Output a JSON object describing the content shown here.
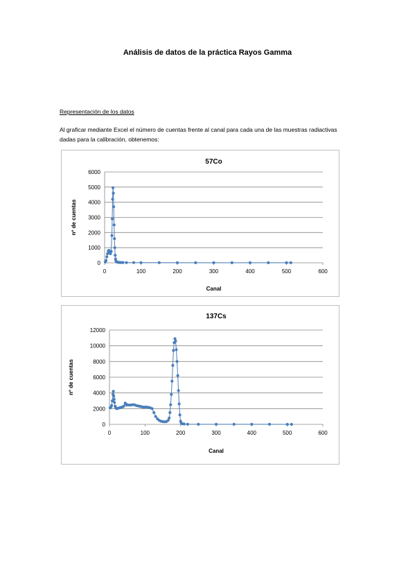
{
  "document": {
    "title": "Análisis de datos de la práctica Rayos Gamma",
    "section_heading": "Representación de los datos",
    "paragraph": "Al graficar mediante Excel el número de cuentas frente al canal para cada una de las muestras radiactivas dadas para la calibración, obtenemos:"
  },
  "chart_data": [
    {
      "type": "scatter",
      "title": "57Co",
      "xlabel": "Canal",
      "ylabel": "nº de cuentas",
      "xlim": [
        0,
        600
      ],
      "ylim": [
        0,
        6000
      ],
      "xticks": [
        0,
        100,
        200,
        300,
        400,
        500,
        600
      ],
      "yticks": [
        0,
        1000,
        2000,
        3000,
        4000,
        5000,
        6000
      ],
      "grid": true,
      "legend": "none",
      "color": "#4a7ebb",
      "series": [
        {
          "x": [
            2,
            4,
            6,
            8,
            10,
            12,
            14,
            16,
            18,
            20,
            21,
            22,
            23,
            24,
            25,
            26,
            27,
            28,
            29,
            30,
            31,
            32,
            34,
            36,
            38,
            40,
            45,
            50,
            60,
            80,
            100,
            150,
            200,
            250,
            300,
            350,
            400,
            450,
            500,
            512
          ],
          "y": [
            50,
            150,
            400,
            600,
            780,
            820,
            700,
            600,
            750,
            1800,
            2900,
            4200,
            4950,
            4600,
            3700,
            2500,
            1600,
            1000,
            500,
            250,
            120,
            80,
            50,
            40,
            30,
            25,
            20,
            18,
            15,
            12,
            10,
            8,
            6,
            5,
            5,
            4,
            4,
            3,
            3,
            3
          ]
        }
      ]
    },
    {
      "type": "scatter",
      "title": "137Cs",
      "xlabel": "Canal",
      "ylabel": "nº de cuentas",
      "xlim": [
        0,
        600
      ],
      "ylim": [
        0,
        12000
      ],
      "xticks": [
        0,
        100,
        200,
        300,
        400,
        500,
        600
      ],
      "yticks": [
        0,
        2000,
        4000,
        6000,
        8000,
        10000,
        12000
      ],
      "grid": true,
      "legend": "none",
      "color": "#4a7ebb",
      "series": [
        {
          "x": [
            2,
            4,
            6,
            8,
            10,
            11,
            12,
            13,
            14,
            16,
            18,
            20,
            24,
            28,
            32,
            36,
            40,
            44,
            46,
            48,
            50,
            55,
            60,
            65,
            70,
            75,
            80,
            85,
            90,
            95,
            100,
            105,
            110,
            115,
            120,
            125,
            130,
            135,
            140,
            145,
            150,
            155,
            160,
            165,
            168,
            170,
            172,
            174,
            176,
            178,
            180,
            182,
            184,
            186,
            188,
            190,
            192,
            194,
            196,
            198,
            200,
            202,
            205,
            210,
            220,
            250,
            300,
            350,
            400,
            450,
            500,
            512
          ],
          "y": [
            2100,
            2200,
            2400,
            3000,
            3800,
            4200,
            3600,
            3200,
            2800,
            2300,
            2100,
            2000,
            2050,
            2100,
            2150,
            2200,
            2300,
            2700,
            2600,
            2450,
            2500,
            2450,
            2450,
            2500,
            2500,
            2400,
            2350,
            2300,
            2250,
            2200,
            2200,
            2200,
            2150,
            2100,
            2000,
            1500,
            1000,
            700,
            500,
            400,
            350,
            330,
            350,
            500,
            800,
            1500,
            2500,
            3800,
            5500,
            7500,
            9400,
            10400,
            10900,
            10600,
            9500,
            8000,
            6200,
            4300,
            2600,
            1200,
            400,
            150,
            80,
            40,
            20,
            10,
            8,
            6,
            5,
            5,
            4,
            4
          ]
        }
      ]
    }
  ]
}
